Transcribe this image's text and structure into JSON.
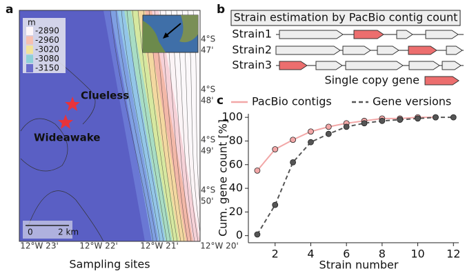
{
  "map": {
    "label": "a",
    "legend_unit": "m",
    "legend_items": [
      "-2890",
      "-2960",
      "-3020",
      "-3080",
      "-3150"
    ],
    "sites": [
      "Clueless",
      "Wideawake"
    ],
    "lat_labels": [
      [
        "4°S",
        "47'"
      ],
      [
        "4°S",
        "48'"
      ],
      [
        "4°S",
        "49'"
      ],
      [
        "4°S",
        "50'"
      ]
    ],
    "lon_labels": [
      "12°W 23'",
      "12°W 22'",
      "12°W 21'",
      "12°W 20'"
    ],
    "scale_bar": [
      "0",
      "2 km"
    ],
    "caption": "Sampling sites"
  },
  "diagram": {
    "label": "b",
    "title": "Strain estimation by PacBio contig count",
    "strains": [
      "Strain1",
      "Strain2",
      "Strain3"
    ],
    "legend": "Single copy gene"
  },
  "chart_data": {
    "type": "line",
    "label": "c",
    "x": [
      1,
      2,
      3,
      4,
      5,
      6,
      7,
      8,
      9,
      10,
      11,
      12
    ],
    "series": [
      {
        "name": "PacBio contigs",
        "color": "#f2a7a7",
        "values": [
          55,
          73,
          81,
          88,
          92,
          95,
          97,
          99,
          99,
          100,
          100,
          null
        ]
      },
      {
        "name": "Gene versions",
        "color": "#555555",
        "values": [
          1,
          26,
          62,
          79,
          86,
          92,
          95,
          97,
          98,
          99,
          100,
          100
        ]
      }
    ],
    "xlabel": "Strain number",
    "ylabel": "Cum. gene count [%]",
    "xlim": [
      0.5,
      12.3
    ],
    "ylim": [
      -6,
      103
    ],
    "xticks": [
      2,
      4,
      6,
      8,
      10,
      12
    ],
    "yticks": [
      0,
      20,
      40,
      60,
      80,
      100
    ]
  }
}
